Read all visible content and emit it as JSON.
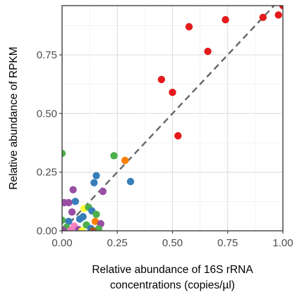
{
  "chart_data": {
    "type": "scatter",
    "xlabel": [
      "Relative abundance of 16S rRNA",
      "concentrations (copies/µl)"
    ],
    "ylabel": "Relative abundance of RPKM",
    "xlim": [
      0,
      1
    ],
    "ylim": [
      0,
      0.96
    ],
    "x_ticks": [
      0,
      0.25,
      0.5,
      0.75,
      1.0
    ],
    "x_tick_labels": [
      "0.00",
      "0.25",
      "0.50",
      "0.75",
      "1.00"
    ],
    "y_ticks": [
      0,
      0.25,
      0.5,
      0.75
    ],
    "y_tick_labels": [
      "0.00",
      "0.25",
      "0.50",
      "0.75"
    ],
    "grid": true,
    "reference_line": {
      "style": "dashed",
      "color": "#666666",
      "from": [
        0,
        0
      ],
      "to": [
        1,
        1
      ]
    },
    "points": [
      {
        "x": 1.0,
        "y": 0.96,
        "color": "#e41a1c"
      },
      {
        "x": 0.98,
        "y": 0.92,
        "color": "#e41a1c"
      },
      {
        "x": 0.91,
        "y": 0.91,
        "color": "#e41a1c"
      },
      {
        "x": 0.74,
        "y": 0.9,
        "color": "#e41a1c"
      },
      {
        "x": 0.575,
        "y": 0.87,
        "color": "#e41a1c"
      },
      {
        "x": 0.66,
        "y": 0.765,
        "color": "#e41a1c"
      },
      {
        "x": 0.45,
        "y": 0.645,
        "color": "#e41a1c"
      },
      {
        "x": 0.5,
        "y": 0.59,
        "color": "#e41a1c"
      },
      {
        "x": 0.525,
        "y": 0.405,
        "color": "#e41a1c"
      },
      {
        "x": 0.0,
        "y": 0.33,
        "color": "#4daf4a"
      },
      {
        "x": 0.235,
        "y": 0.32,
        "color": "#4daf4a"
      },
      {
        "x": 0.285,
        "y": 0.3,
        "color": "#ff7f00"
      },
      {
        "x": 0.155,
        "y": 0.235,
        "color": "#377eb8"
      },
      {
        "x": 0.145,
        "y": 0.205,
        "color": "#377eb8"
      },
      {
        "x": 0.31,
        "y": 0.21,
        "color": "#377eb8"
      },
      {
        "x": 0.05,
        "y": 0.175,
        "color": "#984ea3"
      },
      {
        "x": 0.185,
        "y": 0.168,
        "color": "#984ea3"
      },
      {
        "x": 0.06,
        "y": 0.125,
        "color": "#377eb8"
      },
      {
        "x": 0.01,
        "y": 0.12,
        "color": "#984ea3"
      },
      {
        "x": 0.03,
        "y": 0.12,
        "color": "#984ea3"
      },
      {
        "x": 0.1,
        "y": 0.095,
        "color": "#ffff33"
      },
      {
        "x": 0.12,
        "y": 0.1,
        "color": "#4daf4a"
      },
      {
        "x": 0.135,
        "y": 0.085,
        "color": "#377eb8"
      },
      {
        "x": 0.045,
        "y": 0.08,
        "color": "#984ea3"
      },
      {
        "x": 0.155,
        "y": 0.07,
        "color": "#4daf4a"
      },
      {
        "x": 0.095,
        "y": 0.06,
        "color": "#377eb8"
      },
      {
        "x": 0.08,
        "y": 0.05,
        "color": "#377eb8"
      },
      {
        "x": 0.0,
        "y": 0.045,
        "color": "#4daf4a"
      },
      {
        "x": 0.03,
        "y": 0.04,
        "color": "#377eb8"
      },
      {
        "x": 0.15,
        "y": 0.04,
        "color": "#ff7f00"
      },
      {
        "x": 0.175,
        "y": 0.03,
        "color": "#984ea3"
      },
      {
        "x": 0.11,
        "y": 0.025,
        "color": "#4daf4a"
      },
      {
        "x": 0.055,
        "y": 0.02,
        "color": "#f781bf"
      },
      {
        "x": 0.02,
        "y": 0.015,
        "color": "#4daf4a"
      },
      {
        "x": 0.13,
        "y": 0.01,
        "color": "#377eb8"
      },
      {
        "x": 0.165,
        "y": 0.008,
        "color": "#4daf4a"
      },
      {
        "x": 0.075,
        "y": 0.005,
        "color": "#984ea3"
      },
      {
        "x": 0.04,
        "y": 0.003,
        "color": "#f781bf"
      },
      {
        "x": 0.005,
        "y": 0.002,
        "color": "#984ea3"
      },
      {
        "x": 0.09,
        "y": 0.0,
        "color": "#ffff33"
      },
      {
        "x": 0.14,
        "y": 0.0,
        "color": "#a65628"
      }
    ]
  }
}
